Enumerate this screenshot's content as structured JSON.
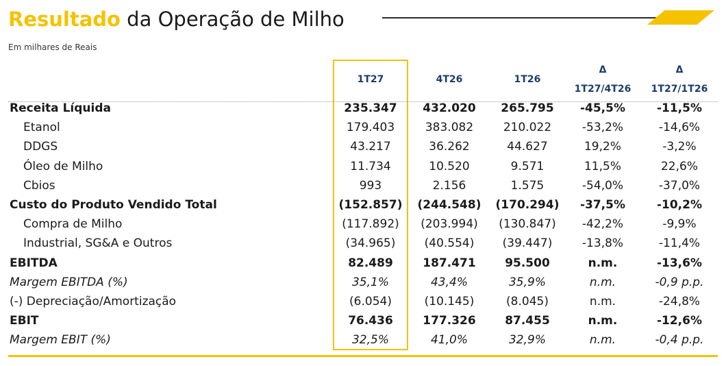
{
  "header": {
    "title_accent": "Resultado",
    "title_rest": " da Operação de Milho",
    "subtitle": "Em milhares de Reais"
  },
  "colors": {
    "accent": "#f5c200",
    "header_text": "#1b3c6e"
  },
  "columns": {
    "c1": "1T27",
    "c2": "4T26",
    "c3": "1T26",
    "c4_sym": "Δ",
    "c4_sub": "1T27/4T26",
    "c5_sym": "Δ",
    "c5_sub": "1T27/1T26"
  },
  "rows": [
    {
      "label": "Receita Líquida",
      "v": [
        "235.347",
        "432.020",
        "265.795",
        "-45,5%",
        "-11,5%"
      ]
    },
    {
      "label": "Etanol",
      "v": [
        "179.403",
        "383.082",
        "210.022",
        "-53,2%",
        "-14,6%"
      ]
    },
    {
      "label": "DDGS",
      "v": [
        "43.217",
        "36.262",
        "44.627",
        "19,2%",
        "-3,2%"
      ]
    },
    {
      "label": "Óleo de Milho",
      "v": [
        "11.734",
        "10.520",
        "9.571",
        "11,5%",
        "22,6%"
      ]
    },
    {
      "label": "Cbios",
      "v": [
        "993",
        "2.156",
        "1.575",
        "-54,0%",
        "-37,0%"
      ]
    },
    {
      "label": "Custo do Produto Vendido Total",
      "v": [
        "(152.857)",
        "(244.548)",
        "(170.294)",
        "-37,5%",
        "-10,2%"
      ]
    },
    {
      "label": "Compra de Milho",
      "v": [
        "(117.892)",
        "(203.994)",
        "(130.847)",
        "-42,2%",
        "-9,9%"
      ]
    },
    {
      "label": "Industrial, SG&A e Outros",
      "v": [
        "(34.965)",
        "(40.554)",
        "(39.447)",
        "-13,8%",
        "-11,4%"
      ]
    },
    {
      "label": "EBITDA",
      "v": [
        "82.489",
        "187.471",
        "95.500",
        "n.m.",
        "-13,6%"
      ]
    },
    {
      "label": "Margem EBITDA (%)",
      "v": [
        "35,1%",
        "43,4%",
        "35,9%",
        "n.m.",
        "-0,9 p.p."
      ]
    },
    {
      "label": "(-) Depreciação/Amortização",
      "v": [
        "(6.054)",
        "(10.145)",
        "(8.045)",
        "n.m.",
        "-24,8%"
      ]
    },
    {
      "label": "EBIT",
      "v": [
        "76.436",
        "177.326",
        "87.455",
        "n.m.",
        "-12,6%"
      ]
    },
    {
      "label": "Margem EBIT (%)",
      "v": [
        "32,5%",
        "41,0%",
        "32,9%",
        "n.m.",
        "-0,4 p.p."
      ]
    }
  ]
}
